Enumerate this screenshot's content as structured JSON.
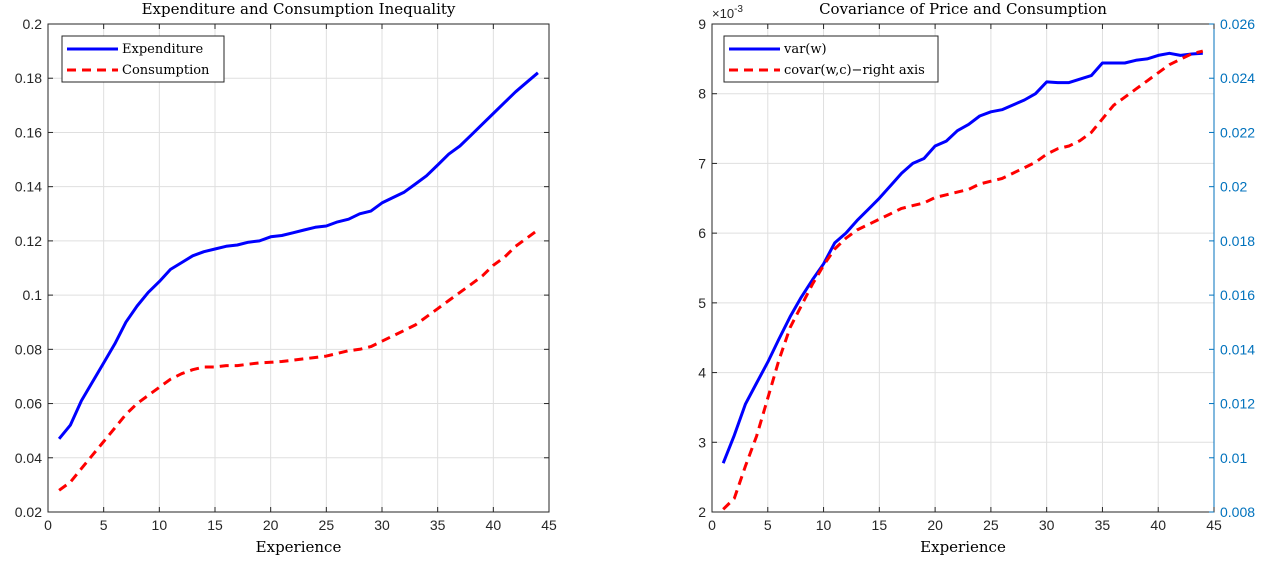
{
  "chart_data": [
    {
      "type": "line",
      "title": "Expenditure and Consumption Inequality",
      "xlabel": "Experience",
      "ylabel": "",
      "xlim": [
        0,
        45
      ],
      "ylim": [
        0.02,
        0.2
      ],
      "xticks": [
        0,
        5,
        10,
        15,
        20,
        25,
        30,
        35,
        40,
        45
      ],
      "xtick_labels": [
        "0",
        "5",
        "10",
        "15",
        "20",
        "25",
        "30",
        "35",
        "40",
        "45"
      ],
      "yticks": [
        0.02,
        0.04,
        0.06,
        0.08,
        0.1,
        0.12,
        0.14,
        0.16,
        0.18,
        0.2
      ],
      "ytick_labels": [
        "0.02",
        "0.04",
        "0.06",
        "0.08",
        "0.1",
        "0.12",
        "0.14",
        "0.16",
        "0.18",
        "0.2"
      ],
      "grid": true,
      "legend_position": "top-left",
      "series": [
        {
          "name": "Expenditure",
          "color": "#0000ff",
          "style": "solid",
          "x": [
            1,
            2,
            3,
            4,
            5,
            6,
            7,
            8,
            9,
            10,
            11,
            12,
            13,
            14,
            15,
            16,
            17,
            18,
            19,
            20,
            21,
            22,
            23,
            24,
            25,
            26,
            27,
            28,
            29,
            30,
            31,
            32,
            33,
            34,
            35,
            36,
            37,
            38,
            39,
            40,
            41,
            42,
            43,
            44
          ],
          "y": [
            0.047,
            0.052,
            0.061,
            0.068,
            0.075,
            0.082,
            0.09,
            0.096,
            0.101,
            0.105,
            0.1095,
            0.112,
            0.1145,
            0.116,
            0.117,
            0.118,
            0.1185,
            0.1195,
            0.12,
            0.1215,
            0.122,
            0.123,
            0.124,
            0.125,
            0.1255,
            0.127,
            0.128,
            0.13,
            0.131,
            0.134,
            0.136,
            0.138,
            0.141,
            0.144,
            0.148,
            0.152,
            0.155,
            0.159,
            0.163,
            0.167,
            0.171,
            0.175,
            0.1785,
            0.182
          ]
        },
        {
          "name": "Consumption",
          "color": "#ff0000",
          "style": "dashed",
          "x": [
            1,
            2,
            3,
            4,
            5,
            6,
            7,
            8,
            9,
            10,
            11,
            12,
            13,
            14,
            15,
            16,
            17,
            18,
            19,
            20,
            21,
            22,
            23,
            24,
            25,
            26,
            27,
            28,
            29,
            30,
            31,
            32,
            33,
            34,
            35,
            36,
            37,
            38,
            39,
            40,
            41,
            42,
            43,
            44
          ],
          "y": [
            0.028,
            0.031,
            0.036,
            0.041,
            0.046,
            0.051,
            0.056,
            0.06,
            0.063,
            0.066,
            0.069,
            0.071,
            0.0725,
            0.0735,
            0.0735,
            0.074,
            0.074,
            0.0745,
            0.075,
            0.0752,
            0.0755,
            0.076,
            0.0765,
            0.077,
            0.0775,
            0.0785,
            0.0795,
            0.08,
            0.081,
            0.083,
            0.085,
            0.087,
            0.089,
            0.092,
            0.095,
            0.098,
            0.101,
            0.104,
            0.107,
            0.111,
            0.114,
            0.118,
            0.121,
            0.124
          ]
        }
      ]
    },
    {
      "type": "line",
      "title": "Covariance of Price and Consumption",
      "xlabel": "Experience",
      "ylabel": "",
      "exponent_label": "×10",
      "exponent_power": "-3",
      "xlim": [
        0,
        45
      ],
      "ylim": [
        2,
        9
      ],
      "ylim_right": [
        0.008,
        0.026
      ],
      "xticks": [
        0,
        5,
        10,
        15,
        20,
        25,
        30,
        35,
        40,
        45
      ],
      "xtick_labels": [
        "0",
        "5",
        "10",
        "15",
        "20",
        "25",
        "30",
        "35",
        "40",
        "45"
      ],
      "yticks": [
        2,
        3,
        4,
        5,
        6,
        7,
        8,
        9
      ],
      "ytick_labels": [
        "2",
        "3",
        "4",
        "5",
        "6",
        "7",
        "8",
        "9"
      ],
      "yticks_right": [
        0.008,
        0.01,
        0.012,
        0.014,
        0.016,
        0.018,
        0.02,
        0.022,
        0.024,
        0.026
      ],
      "ytick_labels_right": [
        "0.008",
        "0.01",
        "0.012",
        "0.014",
        "0.016",
        "0.018",
        "0.02",
        "0.022",
        "0.024",
        "0.026"
      ],
      "right_axis_color": "#0072bd",
      "grid": true,
      "legend_position": "top-left",
      "series": [
        {
          "name": "var(w)",
          "color": "#0000ff",
          "style": "solid",
          "axis": "left",
          "x": [
            1,
            2,
            3,
            4,
            5,
            6,
            7,
            8,
            9,
            10,
            11,
            12,
            13,
            14,
            15,
            16,
            17,
            18,
            19,
            20,
            21,
            22,
            23,
            24,
            25,
            26,
            27,
            28,
            29,
            30,
            31,
            32,
            33,
            34,
            35,
            36,
            37,
            38,
            39,
            40,
            41,
            42,
            43,
            44
          ],
          "y": [
            2.7,
            3.1,
            3.55,
            3.85,
            4.15,
            4.48,
            4.8,
            5.08,
            5.33,
            5.56,
            5.86,
            6.0,
            6.18,
            6.34,
            6.5,
            6.68,
            6.86,
            7.0,
            7.07,
            7.25,
            7.32,
            7.47,
            7.56,
            7.68,
            7.74,
            7.77,
            7.84,
            7.91,
            8.0,
            8.17,
            8.16,
            8.16,
            8.21,
            8.26,
            8.44,
            8.44,
            8.44,
            8.48,
            8.5,
            8.55,
            8.58,
            8.55,
            8.57,
            8.58
          ]
        },
        {
          "name": "covar(w,c)−right axis",
          "color": "#ff0000",
          "style": "dashed",
          "axis": "right",
          "x": [
            1,
            2,
            3,
            4,
            5,
            6,
            7,
            8,
            9,
            10,
            11,
            12,
            13,
            14,
            15,
            16,
            17,
            18,
            19,
            20,
            21,
            22,
            23,
            24,
            25,
            26,
            27,
            28,
            29,
            30,
            31,
            32,
            33,
            34,
            35,
            36,
            37,
            38,
            39,
            40,
            41,
            42,
            43,
            44
          ],
          "y": [
            0.0081,
            0.0085,
            0.0097,
            0.0108,
            0.0122,
            0.0136,
            0.0148,
            0.0156,
            0.0164,
            0.0171,
            0.0177,
            0.0181,
            0.0184,
            0.0186,
            0.0188,
            0.019,
            0.0192,
            0.0193,
            0.0194,
            0.0196,
            0.0197,
            0.0198,
            0.0199,
            0.0201,
            0.0202,
            0.0203,
            0.0205,
            0.0207,
            0.0209,
            0.0212,
            0.0214,
            0.0215,
            0.0217,
            0.022,
            0.0225,
            0.023,
            0.0233,
            0.0236,
            0.0239,
            0.0242,
            0.0245,
            0.0247,
            0.0249,
            0.025
          ]
        }
      ]
    }
  ]
}
